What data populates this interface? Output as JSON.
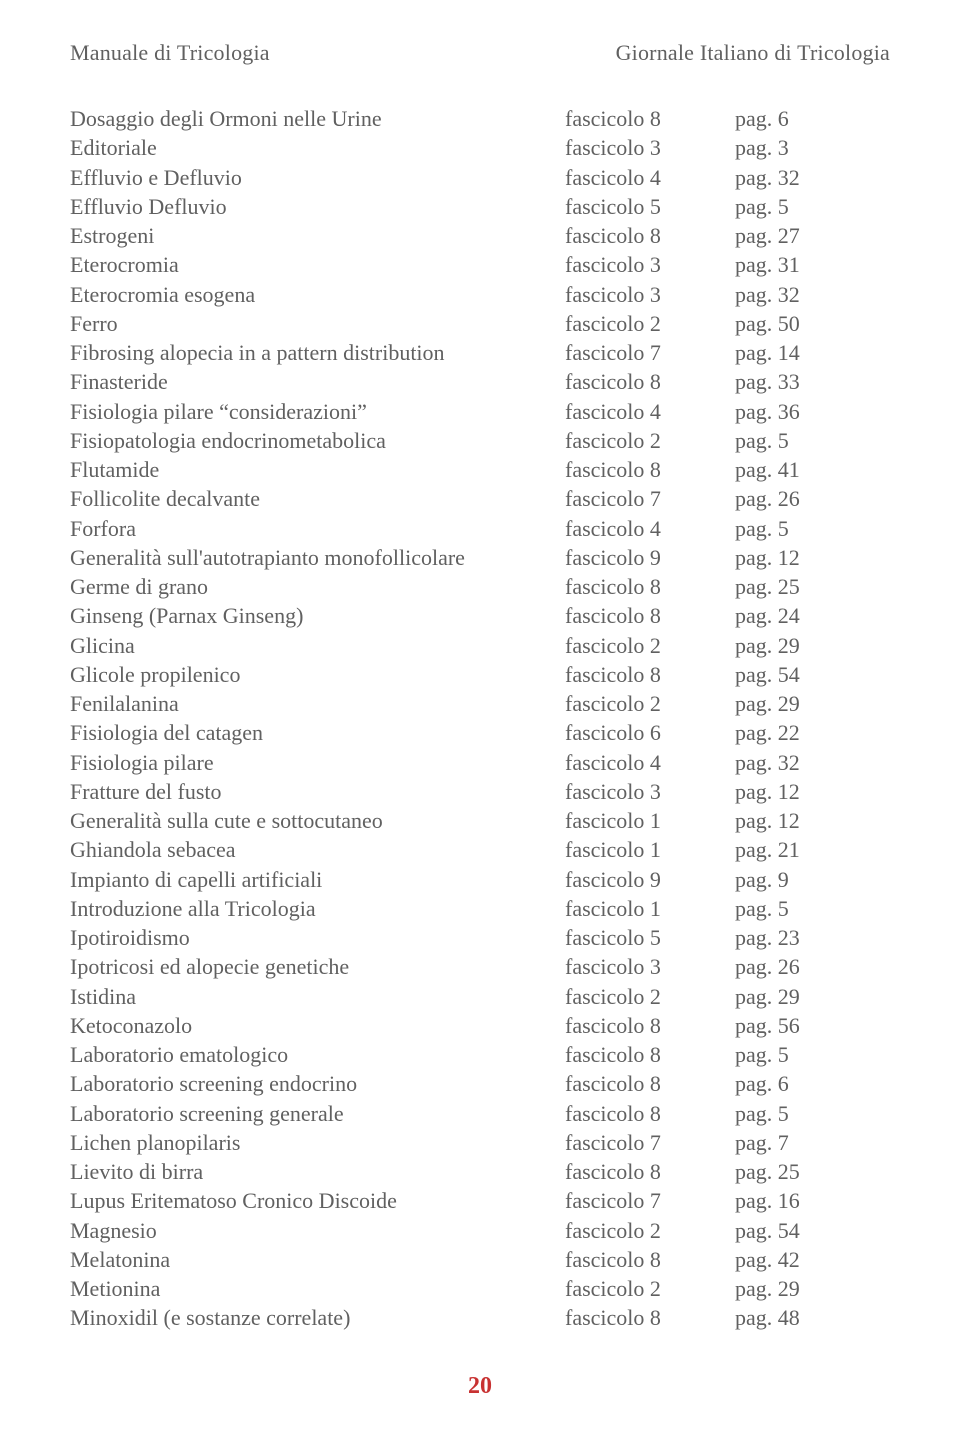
{
  "header": {
    "left": "Manuale di Tricologia",
    "right": "Giornale Italiano di Tricologia"
  },
  "rows": [
    {
      "topic": "Dosaggio degli Ormoni nelle Urine",
      "fasc": "fascicolo 8",
      "pag": "pag. 6"
    },
    {
      "topic": "Editoriale",
      "fasc": "fascicolo 3",
      "pag": "pag. 3"
    },
    {
      "topic": "Effluvio e Defluvio",
      "fasc": "fascicolo 4",
      "pag": "pag. 32"
    },
    {
      "topic": "Effluvio  Defluvio",
      "fasc": "fascicolo 5",
      "pag": "pag. 5"
    },
    {
      "topic": "Estrogeni",
      "fasc": "fascicolo 8",
      "pag": "pag. 27"
    },
    {
      "topic": "Eterocromia",
      "fasc": "fascicolo 3",
      "pag": "pag. 31"
    },
    {
      "topic": "Eterocromia esogena",
      "fasc": "fascicolo 3",
      "pag": "pag. 32"
    },
    {
      "topic": "Ferro",
      "fasc": "fascicolo 2",
      "pag": "pag. 50"
    },
    {
      "topic": "Fibrosing alopecia in a pattern distribution",
      "fasc": "fascicolo 7",
      "pag": "pag. 14"
    },
    {
      "topic": "Finasteride",
      "fasc": "fascicolo 8",
      "pag": "pag. 33"
    },
    {
      "topic": "Fisiologia pilare “considerazioni”",
      "fasc": "fascicolo 4",
      "pag": "pag. 36"
    },
    {
      "topic": "Fisiopatologia endocrinometabolica",
      "fasc": "fascicolo 2",
      "pag": "pag. 5"
    },
    {
      "topic": "Flutamide",
      "fasc": "fascicolo 8",
      "pag": "pag. 41"
    },
    {
      "topic": "Follicolite decalvante",
      "fasc": "fascicolo 7",
      "pag": "pag. 26"
    },
    {
      "topic": "Forfora",
      "fasc": "fascicolo 4",
      "pag": "pag. 5"
    },
    {
      "topic": "Generalità sull'autotrapianto monofollicolare",
      "fasc": "fascicolo 9",
      "pag": "pag. 12"
    },
    {
      "topic": "Germe di grano",
      "fasc": "fascicolo 8",
      "pag": "pag. 25"
    },
    {
      "topic": "Ginseng (Parnax Ginseng)",
      "fasc": "fascicolo 8",
      "pag": "pag. 24"
    },
    {
      "topic": "Glicina",
      "fasc": "fascicolo 2",
      "pag": "pag. 29"
    },
    {
      "topic": "Glicole propilenico",
      "fasc": "fascicolo 8",
      "pag": "pag. 54"
    },
    {
      "topic": "Fenilalanina",
      "fasc": "fascicolo 2",
      "pag": "pag. 29"
    },
    {
      "topic": "Fisiologia del catagen",
      "fasc": "fascicolo 6",
      "pag": "pag. 22"
    },
    {
      "topic": "Fisiologia pilare",
      "fasc": "fascicolo 4",
      "pag": "pag. 32"
    },
    {
      "topic": "Fratture del fusto",
      "fasc": "fascicolo 3",
      "pag": "pag. 12"
    },
    {
      "topic": "Generalità sulla cute e sottocutaneo",
      "fasc": "fascicolo 1",
      "pag": "pag. 12"
    },
    {
      "topic": "Ghiandola sebacea",
      "fasc": "fascicolo 1",
      "pag": "pag. 21"
    },
    {
      "topic": "Impianto di capelli artificiali",
      "fasc": "fascicolo 9",
      "pag": "pag. 9"
    },
    {
      "topic": "Introduzione alla Tricologia",
      "fasc": "fascicolo 1",
      "pag": "pag. 5"
    },
    {
      "topic": "Ipotiroidismo",
      "fasc": "fascicolo 5",
      "pag": "pag. 23"
    },
    {
      "topic": "Ipotricosi ed alopecie genetiche",
      "fasc": "fascicolo 3",
      "pag": "pag. 26"
    },
    {
      "topic": "Istidina",
      "fasc": "fascicolo 2",
      "pag": "pag. 29"
    },
    {
      "topic": "Ketoconazolo",
      "fasc": "fascicolo 8",
      "pag": "pag. 56"
    },
    {
      "topic": "Laboratorio ematologico",
      "fasc": "fascicolo 8",
      "pag": "pag. 5"
    },
    {
      "topic": "Laboratorio screening endocrino",
      "fasc": "fascicolo 8",
      "pag": "pag. 6"
    },
    {
      "topic": "Laboratorio screening generale",
      "fasc": "fascicolo 8",
      "pag": "pag. 5"
    },
    {
      "topic": "Lichen planopilaris",
      "fasc": "fascicolo 7",
      "pag": "pag. 7"
    },
    {
      "topic": "Lievito di birra",
      "fasc": "fascicolo 8",
      "pag": "pag. 25"
    },
    {
      "topic": "Lupus Eritematoso Cronico Discoide",
      "fasc": "fascicolo 7",
      "pag": "pag. 16"
    },
    {
      "topic": "Magnesio",
      "fasc": "fascicolo 2",
      "pag": "pag. 54"
    },
    {
      "topic": "Melatonina",
      "fasc": "fascicolo 8",
      "pag": "pag. 42"
    },
    {
      "topic": "Metionina",
      "fasc": "fascicolo 2",
      "pag": "pag. 29"
    },
    {
      "topic": "Minoxidil (e sostanze correlate)",
      "fasc": "fascicolo 8",
      "pag": "pag. 48"
    }
  ],
  "pageNumber": "20",
  "styling": {
    "text_color": "#606060",
    "pagenum_color": "#c83232",
    "background_color": "#ffffff",
    "font_family": "Times New Roman",
    "body_fontsize": 22,
    "pagenum_fontsize": 24,
    "col_topic_width": 495,
    "col_fasc_width": 170
  }
}
